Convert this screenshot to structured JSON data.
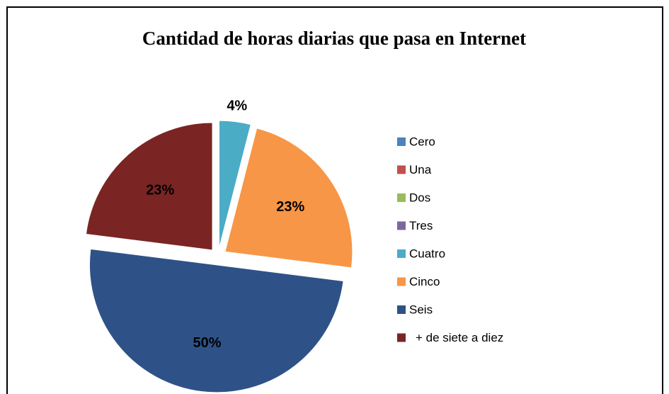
{
  "chart_data": {
    "type": "pie",
    "title": "Cantidad de horas diarias que pasa en Internet",
    "categories": [
      "Cero",
      "Una",
      "Dos",
      "Tres",
      "Cuatro",
      "Cinco",
      "Seis",
      "+ de siete a diez"
    ],
    "values": [
      0,
      0,
      0,
      0,
      4,
      23,
      50,
      23
    ],
    "value_labels": [
      null,
      null,
      null,
      null,
      "4%",
      "23%",
      "50%",
      "23%"
    ],
    "colors": [
      "#4f81bd",
      "#c0504d",
      "#9bbb59",
      "#8064a2",
      "#4bacc6",
      "#f79646",
      "#2e5288",
      "#7b2424"
    ],
    "legend": "right"
  }
}
